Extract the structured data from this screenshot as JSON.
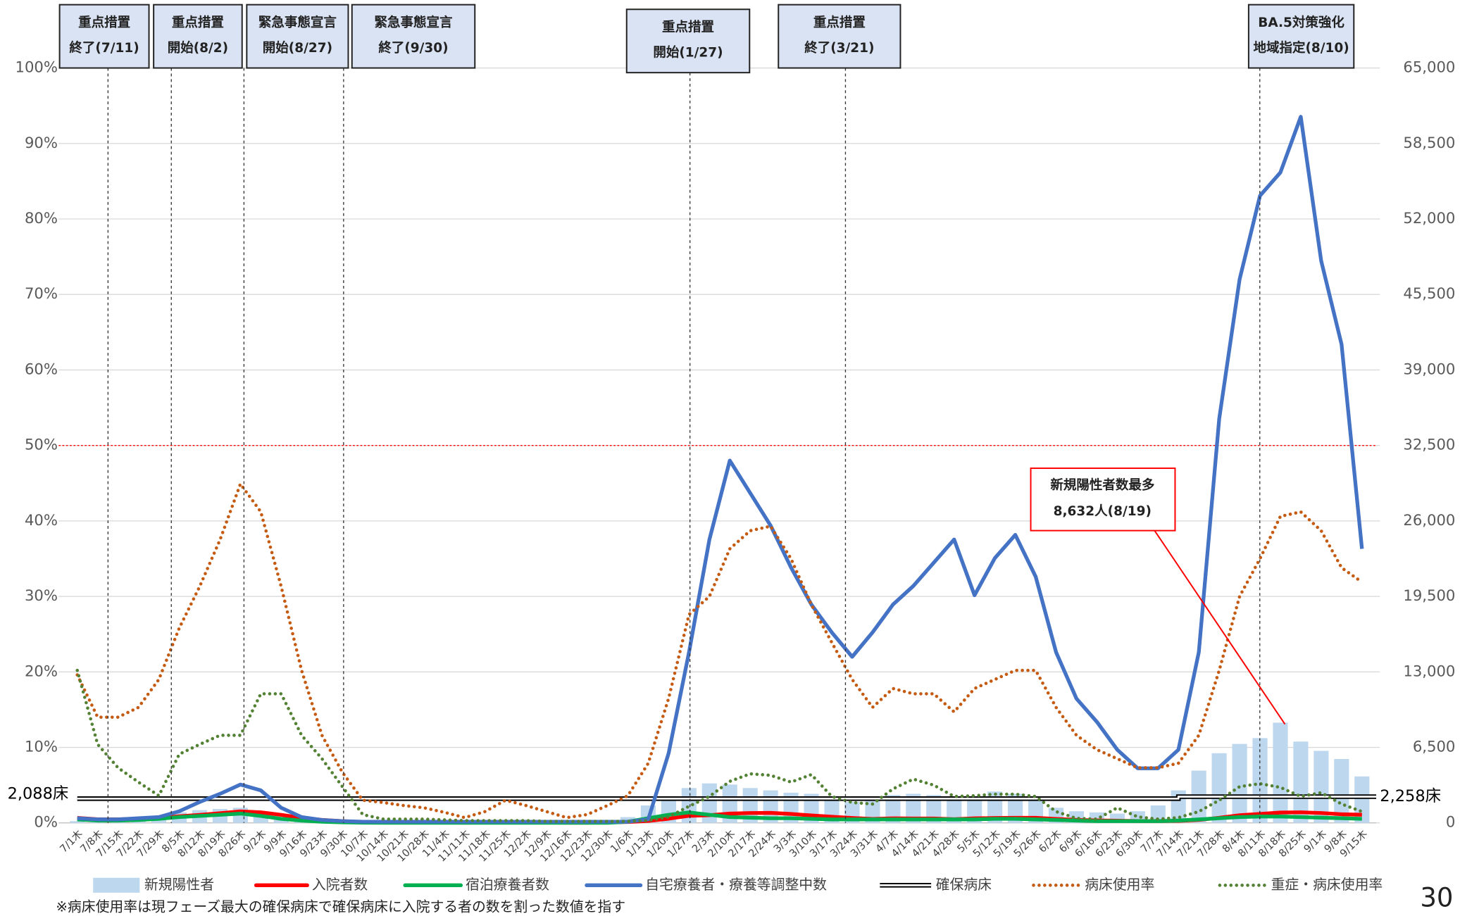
{
  "chart_data": {
    "type": "combo",
    "categories": [
      "7/1木",
      "7/8木",
      "7/15木",
      "7/22木",
      "7/29木",
      "8/5木",
      "8/12木",
      "8/19木",
      "8/26木",
      "9/2木",
      "9/9木",
      "9/16木",
      "9/23木",
      "9/30木",
      "10/7木",
      "10/14木",
      "10/21木",
      "10/28木",
      "11/4木",
      "11/11木",
      "11/18木",
      "11/25木",
      "12/2木",
      "12/9木",
      "12/16木",
      "12/23木",
      "12/30木",
      "1/6木",
      "1/13木",
      "1/20木",
      "1/27木",
      "2/3木",
      "2/10木",
      "2/17木",
      "2/24木",
      "3/3木",
      "3/10木",
      "3/17木",
      "3/24木",
      "3/31木",
      "4/7木",
      "4/14木",
      "4/21木",
      "4/28木",
      "5/5木",
      "5/12木",
      "5/19木",
      "5/26木",
      "6/2木",
      "6/9木",
      "6/16木",
      "6/23木",
      "6/30木",
      "7/7木",
      "7/14木",
      "7/21木",
      "7/28木",
      "8/4木",
      "8/11木",
      "8/18木",
      "8/25木",
      "9/1木",
      "9/8木",
      "9/15木"
    ],
    "ylim": [
      0,
      100
    ],
    "yticks": [
      {
        "value": 0,
        "label": "0%"
      },
      {
        "value": 10,
        "label": "10%"
      },
      {
        "value": 20,
        "label": "20%"
      },
      {
        "value": 30,
        "label": "30%"
      },
      {
        "value": 40,
        "label": "40%"
      },
      {
        "value": 50,
        "label": "50%"
      },
      {
        "value": 60,
        "label": "60%"
      },
      {
        "value": 70,
        "label": "70%"
      },
      {
        "value": 80,
        "label": "80%"
      },
      {
        "value": 90,
        "label": "90%"
      },
      {
        "value": 100,
        "label": "100%"
      }
    ],
    "y2lim": [
      0,
      65000
    ],
    "y2ticks": [
      0,
      {
        "value": 6500,
        "label": "6,500"
      },
      {
        "value": 13000,
        "label": "13,000"
      },
      {
        "value": 19500,
        "label": "19,500"
      },
      {
        "value": 26000,
        "label": "26,000"
      },
      {
        "value": 32500,
        "label": "32,500"
      },
      {
        "value": 39000,
        "label": "39,000"
      },
      {
        "value": 45500,
        "label": "45,500"
      },
      {
        "value": 52000,
        "label": "52,000"
      },
      {
        "value": 58500,
        "label": "58,500"
      },
      {
        "value": 65000,
        "label": "65,000"
      }
    ],
    "grid": true,
    "series": [
      {
        "name": "新規陽性者",
        "type": "bar",
        "color": "#bdd7ee",
        "axis": "y2",
        "values": [
          150,
          200,
          250,
          400,
          600,
          900,
          1100,
          1200,
          1300,
          900,
          500,
          250,
          100,
          60,
          30,
          20,
          10,
          10,
          10,
          10,
          10,
          10,
          10,
          10,
          20,
          30,
          60,
          500,
          1500,
          2300,
          3000,
          3400,
          3300,
          3000,
          2800,
          2600,
          2500,
          2000,
          1800,
          2000,
          2400,
          2500,
          2400,
          2100,
          2200,
          2700,
          2500,
          2000,
          1300,
          1000,
          900,
          800,
          1000,
          1500,
          2800,
          4500,
          6000,
          6800,
          7300,
          8632,
          7000,
          6200,
          5500,
          4000
        ]
      },
      {
        "name": "入院者数",
        "type": "line",
        "color": "#ff0000",
        "axis": "y2",
        "values": [
          430,
          310,
          310,
          340,
          420,
          570,
          690,
          830,
          990,
          910,
          690,
          440,
          260,
          150,
          70,
          60,
          50,
          40,
          30,
          20,
          30,
          70,
          50,
          30,
          20,
          20,
          50,
          80,
          170,
          360,
          610,
          660,
          800,
          850,
          860,
          770,
          640,
          530,
          420,
          340,
          390,
          380,
          380,
          320,
          390,
          420,
          440,
          440,
          340,
          260,
          210,
          190,
          160,
          160,
          170,
          260,
          440,
          660,
          770,
          890,
          910,
          850,
          740,
          700
        ]
      },
      {
        "name": "宿泊療養者数",
        "type": "line",
        "color": "#00b050",
        "axis": "y2",
        "values": [
          300,
          200,
          200,
          250,
          350,
          500,
          600,
          700,
          800,
          600,
          350,
          200,
          100,
          50,
          20,
          10,
          10,
          10,
          10,
          10,
          10,
          10,
          10,
          10,
          10,
          10,
          10,
          100,
          400,
          700,
          900,
          700,
          500,
          450,
          400,
          400,
          350,
          300,
          300,
          300,
          300,
          300,
          300,
          300,
          300,
          350,
          350,
          300,
          250,
          200,
          150,
          150,
          150,
          150,
          200,
          300,
          400,
          500,
          550,
          550,
          500,
          450,
          400,
          350
        ]
      },
      {
        "name": "自宅療養者・療養等調整中数",
        "type": "line",
        "color": "#4472c4",
        "axis": "y2",
        "values": [
          400,
          300,
          300,
          400,
          500,
          1000,
          1800,
          2500,
          3300,
          2800,
          1300,
          500,
          250,
          150,
          100,
          100,
          100,
          100,
          100,
          100,
          100,
          100,
          100,
          100,
          100,
          100,
          100,
          100,
          300,
          6000,
          14700,
          24400,
          31200,
          28400,
          25600,
          22000,
          18800,
          16400,
          14300,
          16400,
          18800,
          20400,
          22400,
          24400,
          19600,
          22800,
          24800,
          21200,
          14700,
          10700,
          8700,
          6300,
          4700,
          4700,
          6300,
          14700,
          34800,
          46800,
          54000,
          56000,
          60800,
          48400,
          41200,
          23600
        ]
      },
      {
        "name": "確保病床",
        "type": "double",
        "color": "#000000",
        "axis": "y2",
        "values": [
          2088,
          2088,
          2088,
          2088,
          2088,
          2088,
          2088,
          2088,
          2088,
          2088,
          2088,
          2088,
          2088,
          2088,
          2088,
          2088,
          2088,
          2088,
          2088,
          2088,
          2088,
          2088,
          2088,
          2088,
          2088,
          2088,
          2088,
          2088,
          2088,
          2088,
          2088,
          2088,
          2088,
          2088,
          2088,
          2088,
          2088,
          2088,
          2088,
          2088,
          2088,
          2088,
          2088,
          2088,
          2088,
          2088,
          2088,
          2088,
          2088,
          2088,
          2088,
          2088,
          2088,
          2088,
          2258,
          2258,
          2258,
          2258,
          2258,
          2258,
          2258,
          2258,
          2258,
          2258
        ]
      },
      {
        "name": "病床使用率",
        "type": "dotted",
        "color": "#c55a11",
        "values": [
          19.6,
          14,
          14,
          15.3,
          19,
          25.8,
          31.3,
          37.5,
          44.9,
          41.2,
          31.3,
          20.2,
          11.6,
          6.7,
          3,
          2.7,
          2.3,
          2,
          1.4,
          0.7,
          1.5,
          3,
          2.3,
          1.5,
          0.7,
          1.1,
          2.3,
          3.6,
          7.9,
          16.5,
          27.6,
          30,
          36.3,
          38.7,
          39.3,
          35,
          28.9,
          23.9,
          19,
          15.3,
          17.8,
          17.1,
          17.1,
          14.7,
          17.8,
          19,
          20.2,
          20.2,
          15.3,
          11.6,
          9.7,
          8.5,
          7.3,
          7.3,
          7.9,
          11.6,
          20.2,
          30,
          35,
          40.6,
          41.2,
          38.7,
          33.8,
          31.9
        ]
      },
      {
        "name": "重症・病床使用率",
        "type": "dotted",
        "color": "#548235",
        "values": [
          20.2,
          10.4,
          7.3,
          5.4,
          3.6,
          9.1,
          10.4,
          11.6,
          11.6,
          17.1,
          17.1,
          11.6,
          8.5,
          4.8,
          1.1,
          0.5,
          0.5,
          0.5,
          0.4,
          0.3,
          0.3,
          0.3,
          0.3,
          0.2,
          0.2,
          0.2,
          0.2,
          0.2,
          0.3,
          0.8,
          2.2,
          3.5,
          5.5,
          6.5,
          6.3,
          5.4,
          6.4,
          3.5,
          2.7,
          2.5,
          4.5,
          5.8,
          5,
          3.5,
          3.6,
          3.8,
          3.8,
          3.5,
          1.5,
          0.6,
          0.5,
          2,
          0.8,
          0.5,
          0.7,
          1.5,
          3,
          4.8,
          5.2,
          4.7,
          3.5,
          4,
          2.5,
          1.5
        ]
      }
    ],
    "reference_line": {
      "value": 50,
      "color": "#ff0000"
    },
    "events": [
      {
        "lines": [
          "重点措置",
          "終了(7/11)"
        ]
      },
      {
        "lines": [
          "重点措置",
          "開始(8/2)"
        ]
      },
      {
        "lines": [
          "緊急事態宣言",
          "開始(8/27)"
        ]
      },
      {
        "lines": [
          "緊急事態宣言",
          "終了(9/30)"
        ]
      },
      {
        "lines": [
          "重点措置",
          "開始(1/27)"
        ]
      },
      {
        "lines": [
          "重点措置",
          "終了(3/21)"
        ]
      },
      {
        "lines": [
          "BA.5対策強化",
          "地域指定(8/10)"
        ]
      }
    ],
    "callout": [
      "新規陽性者数最多",
      "8,632人(8/19)"
    ],
    "capacity_labels": [
      "2,088床",
      "2,258床"
    ],
    "footnote": "※病床使用率は現フェーズ最大の確保病床で確保病床に入院する者の数を割った数値を指す",
    "page_number": "30"
  }
}
